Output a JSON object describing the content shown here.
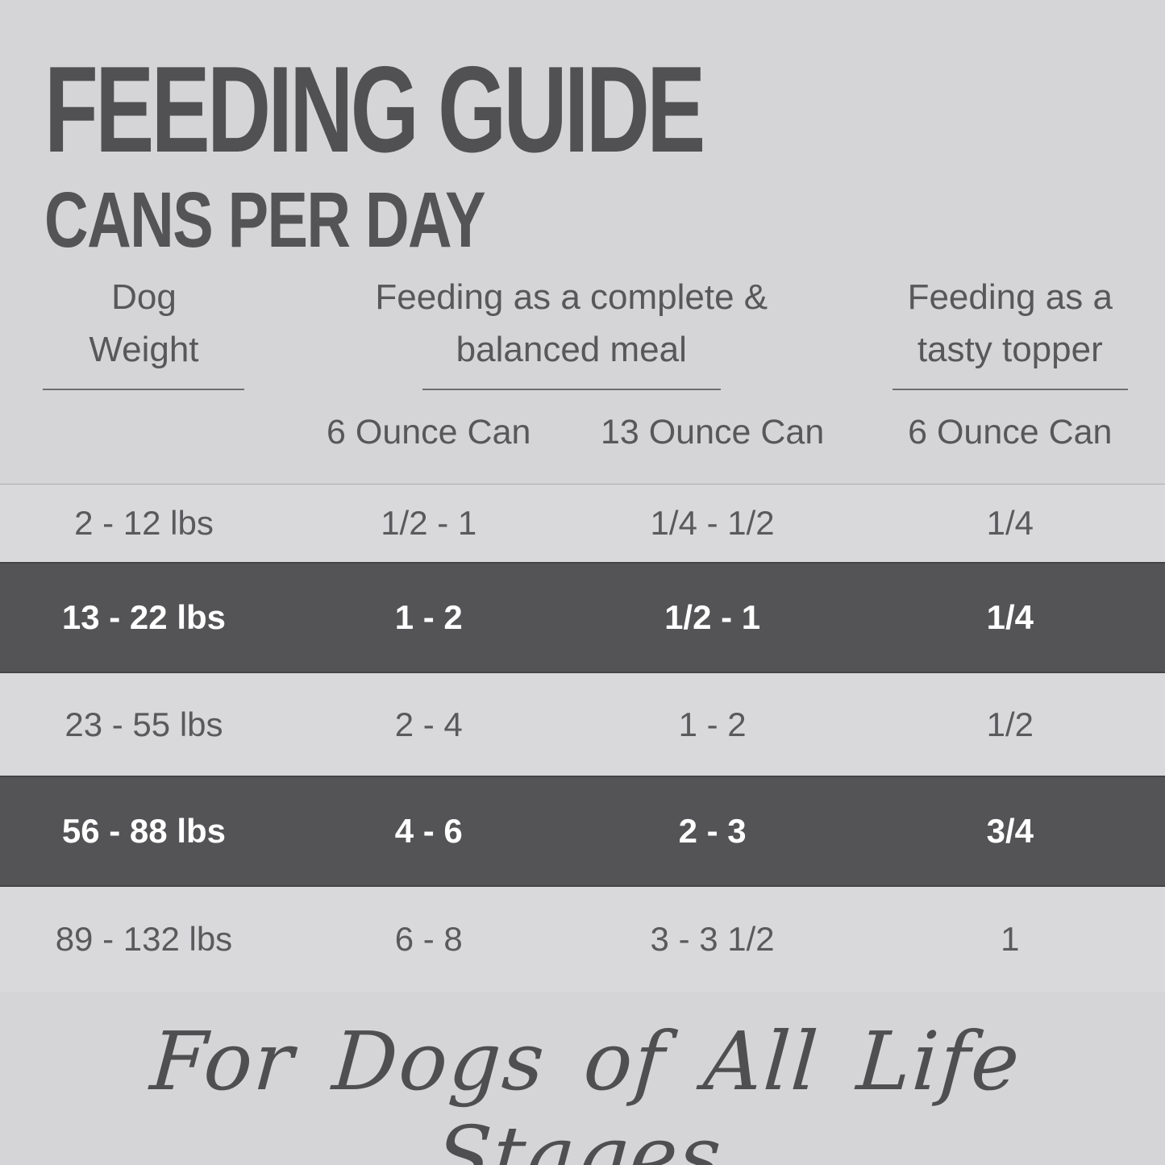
{
  "title": "FEEDING GUIDE",
  "subtitle": "CANS PER DAY",
  "headers": {
    "weight_line1": "Dog",
    "weight_line2": "Weight",
    "meal_line1": "Feeding as a complete &",
    "meal_line2": "balanced meal",
    "topper_line1": "Feeding as a",
    "topper_line2": "tasty topper"
  },
  "subheaders": {
    "meal_can6": "6 Ounce Can",
    "meal_can13": "13 Ounce Can",
    "topper_can6": "6 Ounce Can"
  },
  "rows": [
    {
      "weight": "2 - 12 lbs",
      "can6": "1/2 - 1",
      "can13": "1/4 - 1/2",
      "topper": "1/4",
      "highlight": false
    },
    {
      "weight": "13 - 22 lbs",
      "can6": "1 - 2",
      "can13": "1/2 - 1",
      "topper": "1/4",
      "highlight": true
    },
    {
      "weight": "23 - 55 lbs",
      "can6": "2 - 4",
      "can13": "1 - 2",
      "topper": "1/2",
      "highlight": false
    },
    {
      "weight": "56 - 88 lbs",
      "can6": "4 - 6",
      "can13": "2 - 3",
      "topper": "3/4",
      "highlight": true
    },
    {
      "weight": "89 - 132 lbs",
      "can6": "6 - 8",
      "can13": "3 - 3 1/2",
      "topper": "1",
      "highlight": false
    }
  ],
  "footer": "For Dogs of All Life Stages",
  "colors": {
    "background": "#d5d5d7",
    "row_light": "#d9d9db",
    "row_dark": "#545456",
    "title_text": "#515153",
    "body_text": "#5a5a5d",
    "highlight_text": "#ffffff"
  },
  "chart_data": {
    "type": "table",
    "title": "FEEDING GUIDE",
    "subtitle": "CANS PER DAY",
    "column_groups": [
      "Dog Weight",
      "Feeding as a complete & balanced meal",
      "Feeding as a tasty topper"
    ],
    "columns": [
      "Dog Weight",
      "6 Ounce Can (complete & balanced meal)",
      "13 Ounce Can (complete & balanced meal)",
      "6 Ounce Can (tasty topper)"
    ],
    "rows": [
      [
        "2 - 12 lbs",
        "1/2 - 1",
        "1/4 - 1/2",
        "1/4"
      ],
      [
        "13 - 22 lbs",
        "1 - 2",
        "1/2 - 1",
        "1/4"
      ],
      [
        "23 - 55 lbs",
        "2 - 4",
        "1 - 2",
        "1/2"
      ],
      [
        "56 - 88 lbs",
        "4 - 6",
        "2 - 3",
        "3/4"
      ],
      [
        "89 - 132 lbs",
        "6 - 8",
        "3 - 3 1/2",
        "1"
      ]
    ],
    "highlighted_rows": [
      1,
      3
    ],
    "footnote": "For Dogs of All Life Stages"
  }
}
